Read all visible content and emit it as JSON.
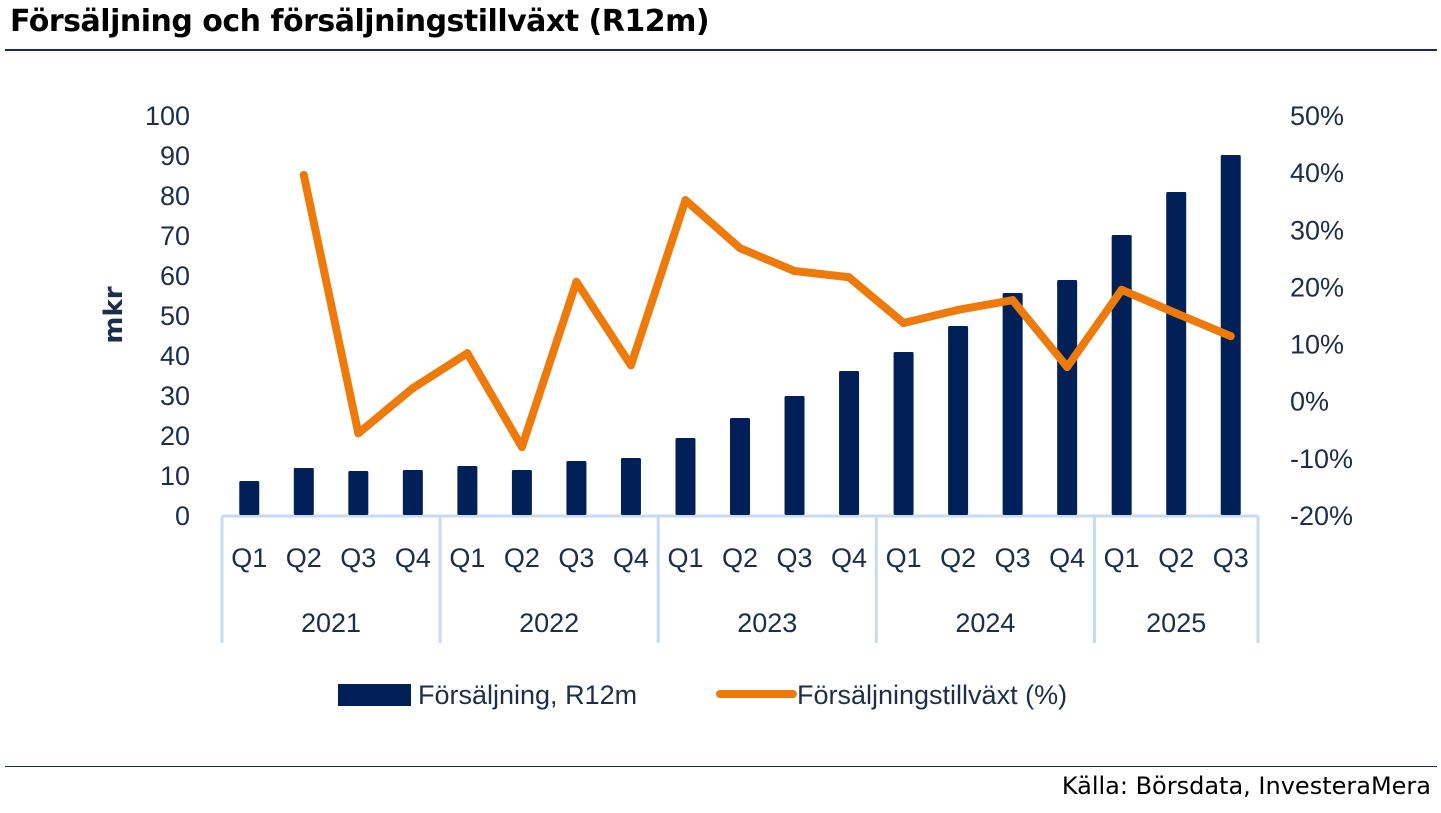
{
  "header": {
    "title": "Försäljning och försäljningstillväxt (R12m)"
  },
  "footer": {
    "source": "Källa: Börsdata, InvesteraMera"
  },
  "colors": {
    "bar": "#002057",
    "line": "#ee7a0b",
    "axis": "#c6dbf1",
    "text": "#1d2e4a"
  },
  "chart_data": {
    "type": "bar+line",
    "title": "Försäljning och försäljningstillväxt (R12m)",
    "xlabel": "",
    "ylabel": "mkr",
    "y2label": "",
    "categories": [
      "Q1",
      "Q2",
      "Q3",
      "Q4",
      "Q1",
      "Q2",
      "Q3",
      "Q4",
      "Q1",
      "Q2",
      "Q3",
      "Q4",
      "Q1",
      "Q2",
      "Q3",
      "Q4",
      "Q1",
      "Q2",
      "Q3"
    ],
    "groups": [
      {
        "label": "2021",
        "count": 4
      },
      {
        "label": "2022",
        "count": 4
      },
      {
        "label": "2023",
        "count": 4
      },
      {
        "label": "2024",
        "count": 4
      },
      {
        "label": "2025",
        "count": 3
      }
    ],
    "ylim": [
      0,
      100
    ],
    "yticks": [
      0,
      10,
      20,
      30,
      40,
      50,
      60,
      70,
      80,
      90,
      100
    ],
    "y2lim": [
      -20,
      50
    ],
    "y2ticks": [
      -20,
      -10,
      0,
      10,
      20,
      30,
      40,
      50
    ],
    "y2tick_labels": [
      "-20%",
      "-10%",
      "0%",
      "10%",
      "20%",
      "30%",
      "40%",
      "50%"
    ],
    "series": [
      {
        "name": "Försäljning, R12m",
        "type": "bar",
        "axis": "left",
        "values": [
          8.5,
          11.75,
          11,
          11.25,
          12.25,
          11.25,
          13.5,
          14.25,
          19.25,
          24.25,
          29.75,
          36,
          40.75,
          47.25,
          55.5,
          58.75,
          70,
          80.75,
          90
        ]
      },
      {
        "name": "Försäljningstillväxt (%)",
        "type": "line",
        "axis": "right",
        "values": [
          null,
          39.5,
          -5.7,
          2.2,
          8.3,
          -8.1,
          20.8,
          6.2,
          35.1,
          26.7,
          22.7,
          21.6,
          13.6,
          15.9,
          17.6,
          5.9,
          19.4,
          15.3,
          11.3
        ]
      }
    ],
    "legend": {
      "position": "bottom",
      "items": [
        "Försäljning, R12m",
        "Försäljningstillväxt (%)"
      ]
    },
    "grid": false
  }
}
